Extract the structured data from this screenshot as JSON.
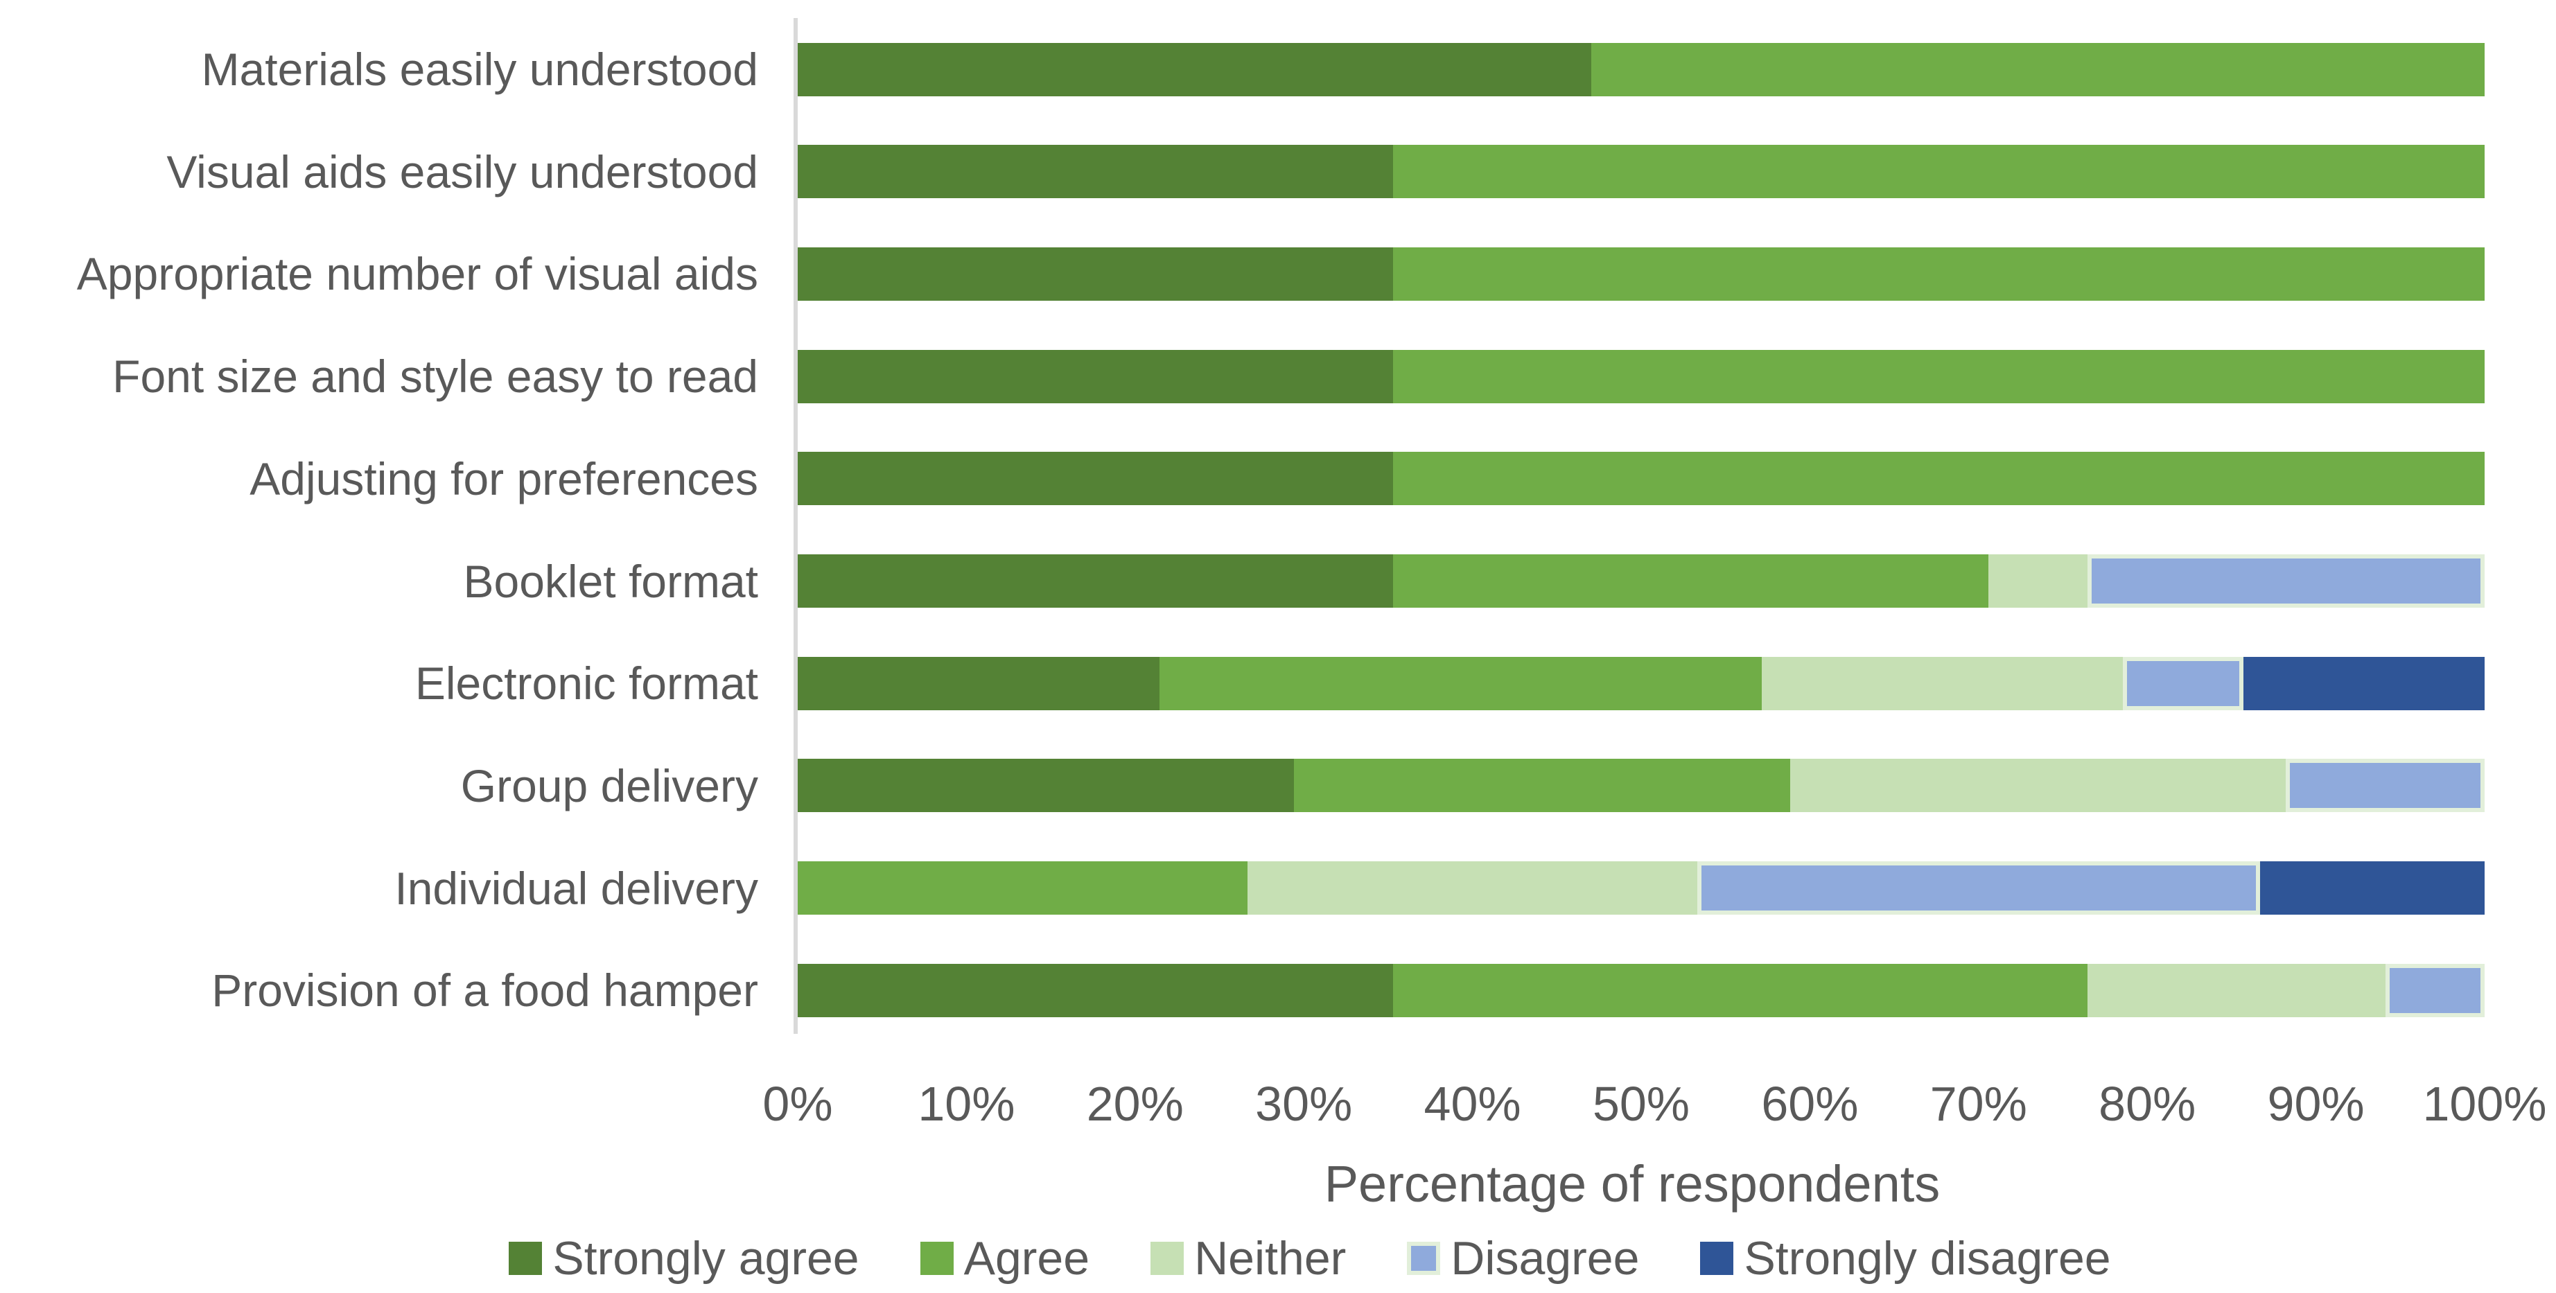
{
  "chart_data": {
    "type": "bar",
    "variant": "horizontal-stacked",
    "title": "",
    "xlabel": "Percentage of respondents",
    "ylabel": "",
    "xlim": [
      0,
      100
    ],
    "x_ticks": [
      "0%",
      "10%",
      "20%",
      "30%",
      "40%",
      "50%",
      "60%",
      "70%",
      "80%",
      "90%",
      "100%"
    ],
    "grid": false,
    "legend_position": "bottom",
    "categories": [
      "Materials easily understood",
      "Visual aids easily understood",
      "Appropriate number of visual aids",
      "Font size and style easy to read",
      "Adjusting for preferences",
      "Booklet format",
      "Electronic format",
      "Group delivery",
      "Individual delivery",
      "Provision of a food hamper"
    ],
    "series": [
      {
        "name": "Strongly agree",
        "color": "#548235",
        "values": [
          47.06,
          35.29,
          35.29,
          35.29,
          35.29,
          35.29,
          21.43,
          29.41,
          0,
          35.29
        ]
      },
      {
        "name": "Agree",
        "color": "#70ad47",
        "values": [
          52.94,
          64.71,
          64.71,
          64.71,
          64.71,
          35.29,
          35.71,
          29.41,
          26.67,
          41.18
        ]
      },
      {
        "name": "Neither",
        "color": "#c6e0b4",
        "values": [
          0,
          0,
          0,
          0,
          0,
          5.88,
          21.43,
          29.41,
          26.67,
          17.65
        ]
      },
      {
        "name": "Disagree",
        "color": "#8faadc",
        "border_color": "#e2efda",
        "values": [
          0,
          0,
          0,
          0,
          0,
          23.54,
          7.14,
          11.77,
          33.33,
          5.88
        ]
      },
      {
        "name": "Strongly disagree",
        "color": "#2f5597",
        "values": [
          0,
          0,
          0,
          0,
          0,
          0,
          14.29,
          0,
          13.33,
          0
        ]
      }
    ]
  },
  "style_colors": {
    "background": "#ffffff",
    "axis_line": "#d9d9d9",
    "text": "#595959",
    "disagree_segment_border": "#e2efda"
  }
}
